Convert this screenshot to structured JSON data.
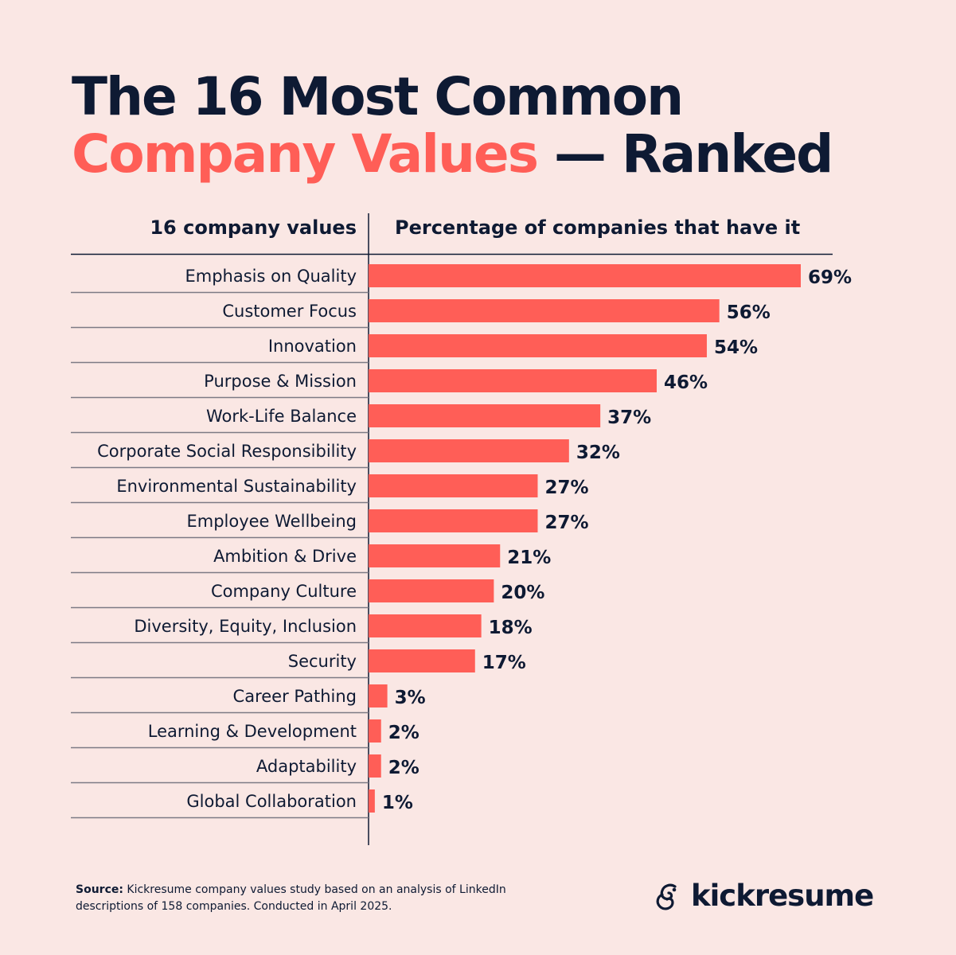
{
  "title": {
    "line1": "The 16 Most Common",
    "accent": "Company Values",
    "rest": " — Ranked"
  },
  "chart_data": {
    "type": "bar",
    "orientation": "horizontal",
    "xlabel": "Percentage of companies that have it",
    "ylabel": "16 company values",
    "categories": [
      "Emphasis on Quality",
      "Customer Focus",
      "Innovation",
      "Purpose & Mission",
      "Work-Life Balance",
      "Corporate Social Responsibility",
      "Environmental Sustainability",
      "Employee Wellbeing",
      "Ambition & Drive",
      "Company Culture",
      "Diversity, Equity, Inclusion",
      "Security",
      "Career Pathing",
      "Learning & Development",
      "Adaptability",
      "Global Collaboration"
    ],
    "values": [
      69,
      56,
      54,
      46,
      37,
      32,
      27,
      27,
      21,
      20,
      18,
      17,
      3,
      2,
      2,
      1
    ],
    "data_labels": [
      "69%",
      "56%",
      "54%",
      "46%",
      "37%",
      "32%",
      "27%",
      "27%",
      "21%",
      "20%",
      "18%",
      "17%",
      "3%",
      "2%",
      "2%",
      "1%"
    ],
    "bar_color": "#ff5e57",
    "grid": false
  },
  "footer": {
    "source_label": "Source:",
    "source_text": " Kickresume company values study based on an analysis of LinkedIn descriptions of 158 companies. Conducted in April 2025.",
    "brand": "kickresume"
  }
}
